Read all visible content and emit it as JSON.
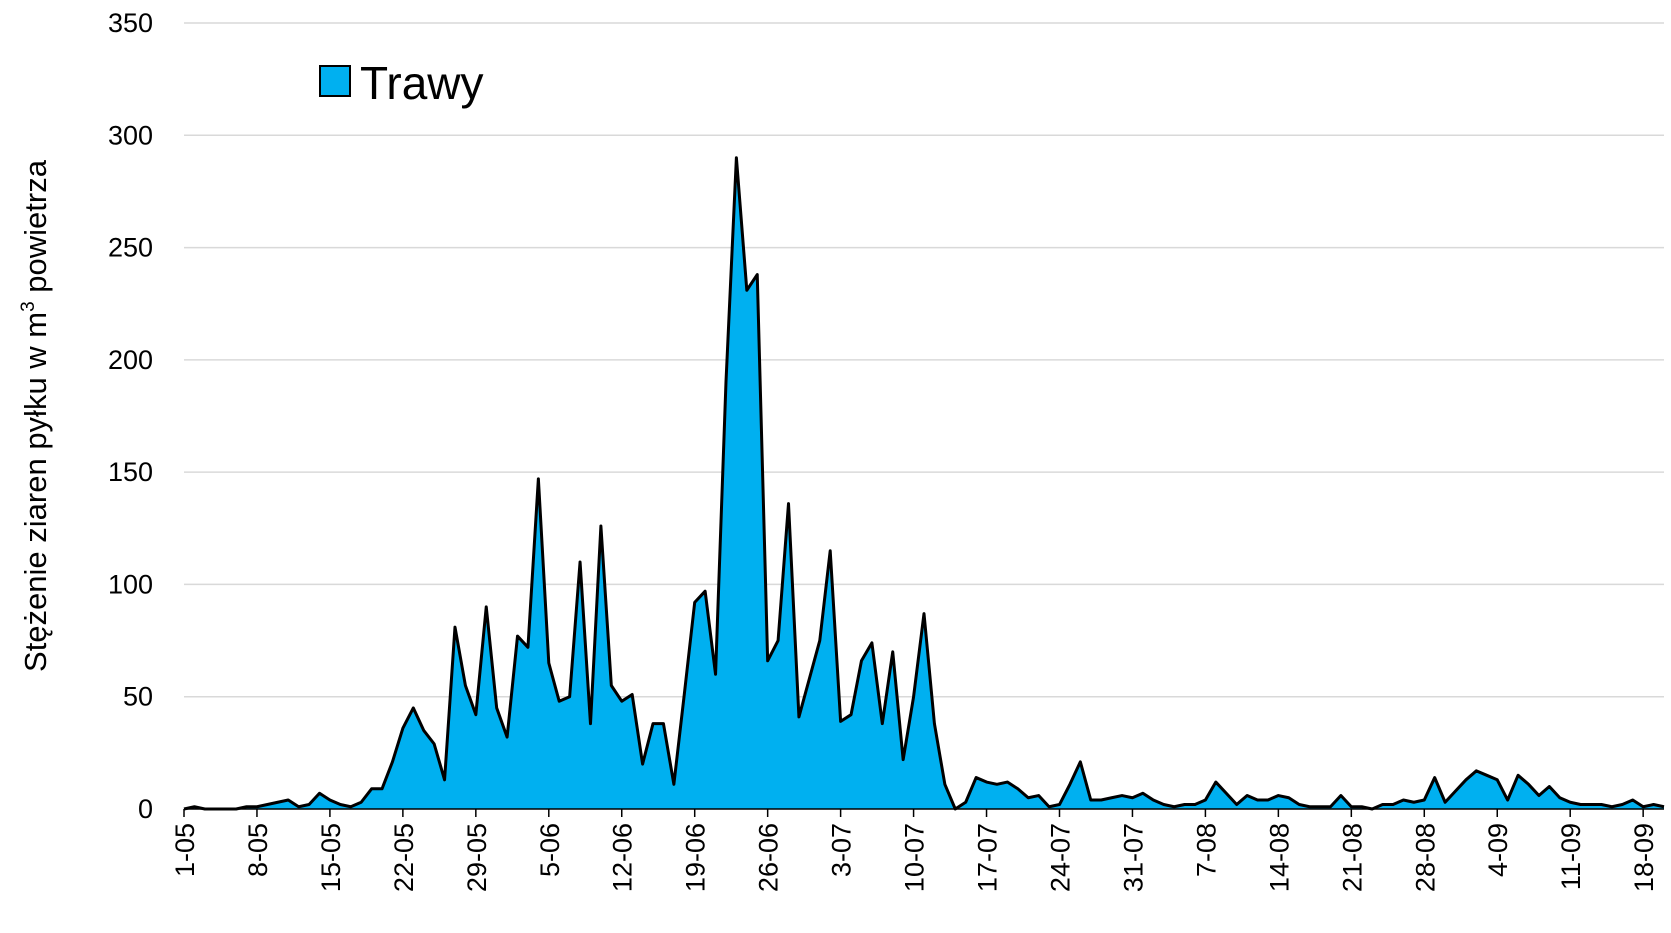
{
  "chart_data": {
    "type": "area",
    "ylabel_main": "Stężenie ziaren pyłku w m",
    "ylabel_sup": "3",
    "ylabel_tail": " powietrza",
    "ylim": [
      0,
      350
    ],
    "yticks": [
      0,
      50,
      100,
      150,
      200,
      250,
      300,
      350
    ],
    "grid": true,
    "legend_position": "top-left",
    "colors": {
      "fill": "#00b0f0",
      "line": "#000000",
      "grid": "#d9d9d9"
    },
    "xtick_labels": [
      "1-05",
      "8-05",
      "15-05",
      "22-05",
      "29-05",
      "5-06",
      "12-06",
      "19-06",
      "26-06",
      "3-07",
      "10-07",
      "17-07",
      "24-07",
      "31-07",
      "7-08",
      "14-08",
      "21-08",
      "28-08",
      "4-09",
      "11-09",
      "18-09"
    ],
    "xtick_step_days": 7,
    "series": [
      {
        "name": "Trawy",
        "values": [
          0,
          1,
          0,
          0,
          0,
          0,
          1,
          1,
          2,
          3,
          4,
          1,
          2,
          7,
          4,
          2,
          1,
          3,
          9,
          9,
          21,
          36,
          45,
          35,
          29,
          13,
          81,
          55,
          42,
          90,
          45,
          32,
          77,
          72,
          147,
          65,
          48,
          50,
          110,
          38,
          126,
          55,
          48,
          51,
          20,
          38,
          38,
          11,
          51,
          92,
          97,
          60,
          190,
          290,
          231,
          238,
          66,
          75,
          136,
          41,
          58,
          75,
          115,
          39,
          42,
          66,
          74,
          38,
          70,
          22,
          50,
          87,
          38,
          11,
          0,
          3,
          14,
          12,
          11,
          12,
          9,
          5,
          6,
          1,
          2,
          11,
          21,
          4,
          4,
          5,
          6,
          5,
          7,
          4,
          2,
          1,
          2,
          2,
          4,
          12,
          7,
          2,
          6,
          4,
          4,
          6,
          5,
          2,
          1,
          1,
          1,
          6,
          1,
          1,
          0,
          2,
          2,
          4,
          3,
          4,
          14,
          3,
          8,
          13,
          17,
          15,
          13,
          4,
          15,
          11,
          6,
          10,
          5,
          3,
          2,
          2,
          2,
          1,
          2,
          4,
          1,
          2,
          1
        ]
      }
    ]
  }
}
